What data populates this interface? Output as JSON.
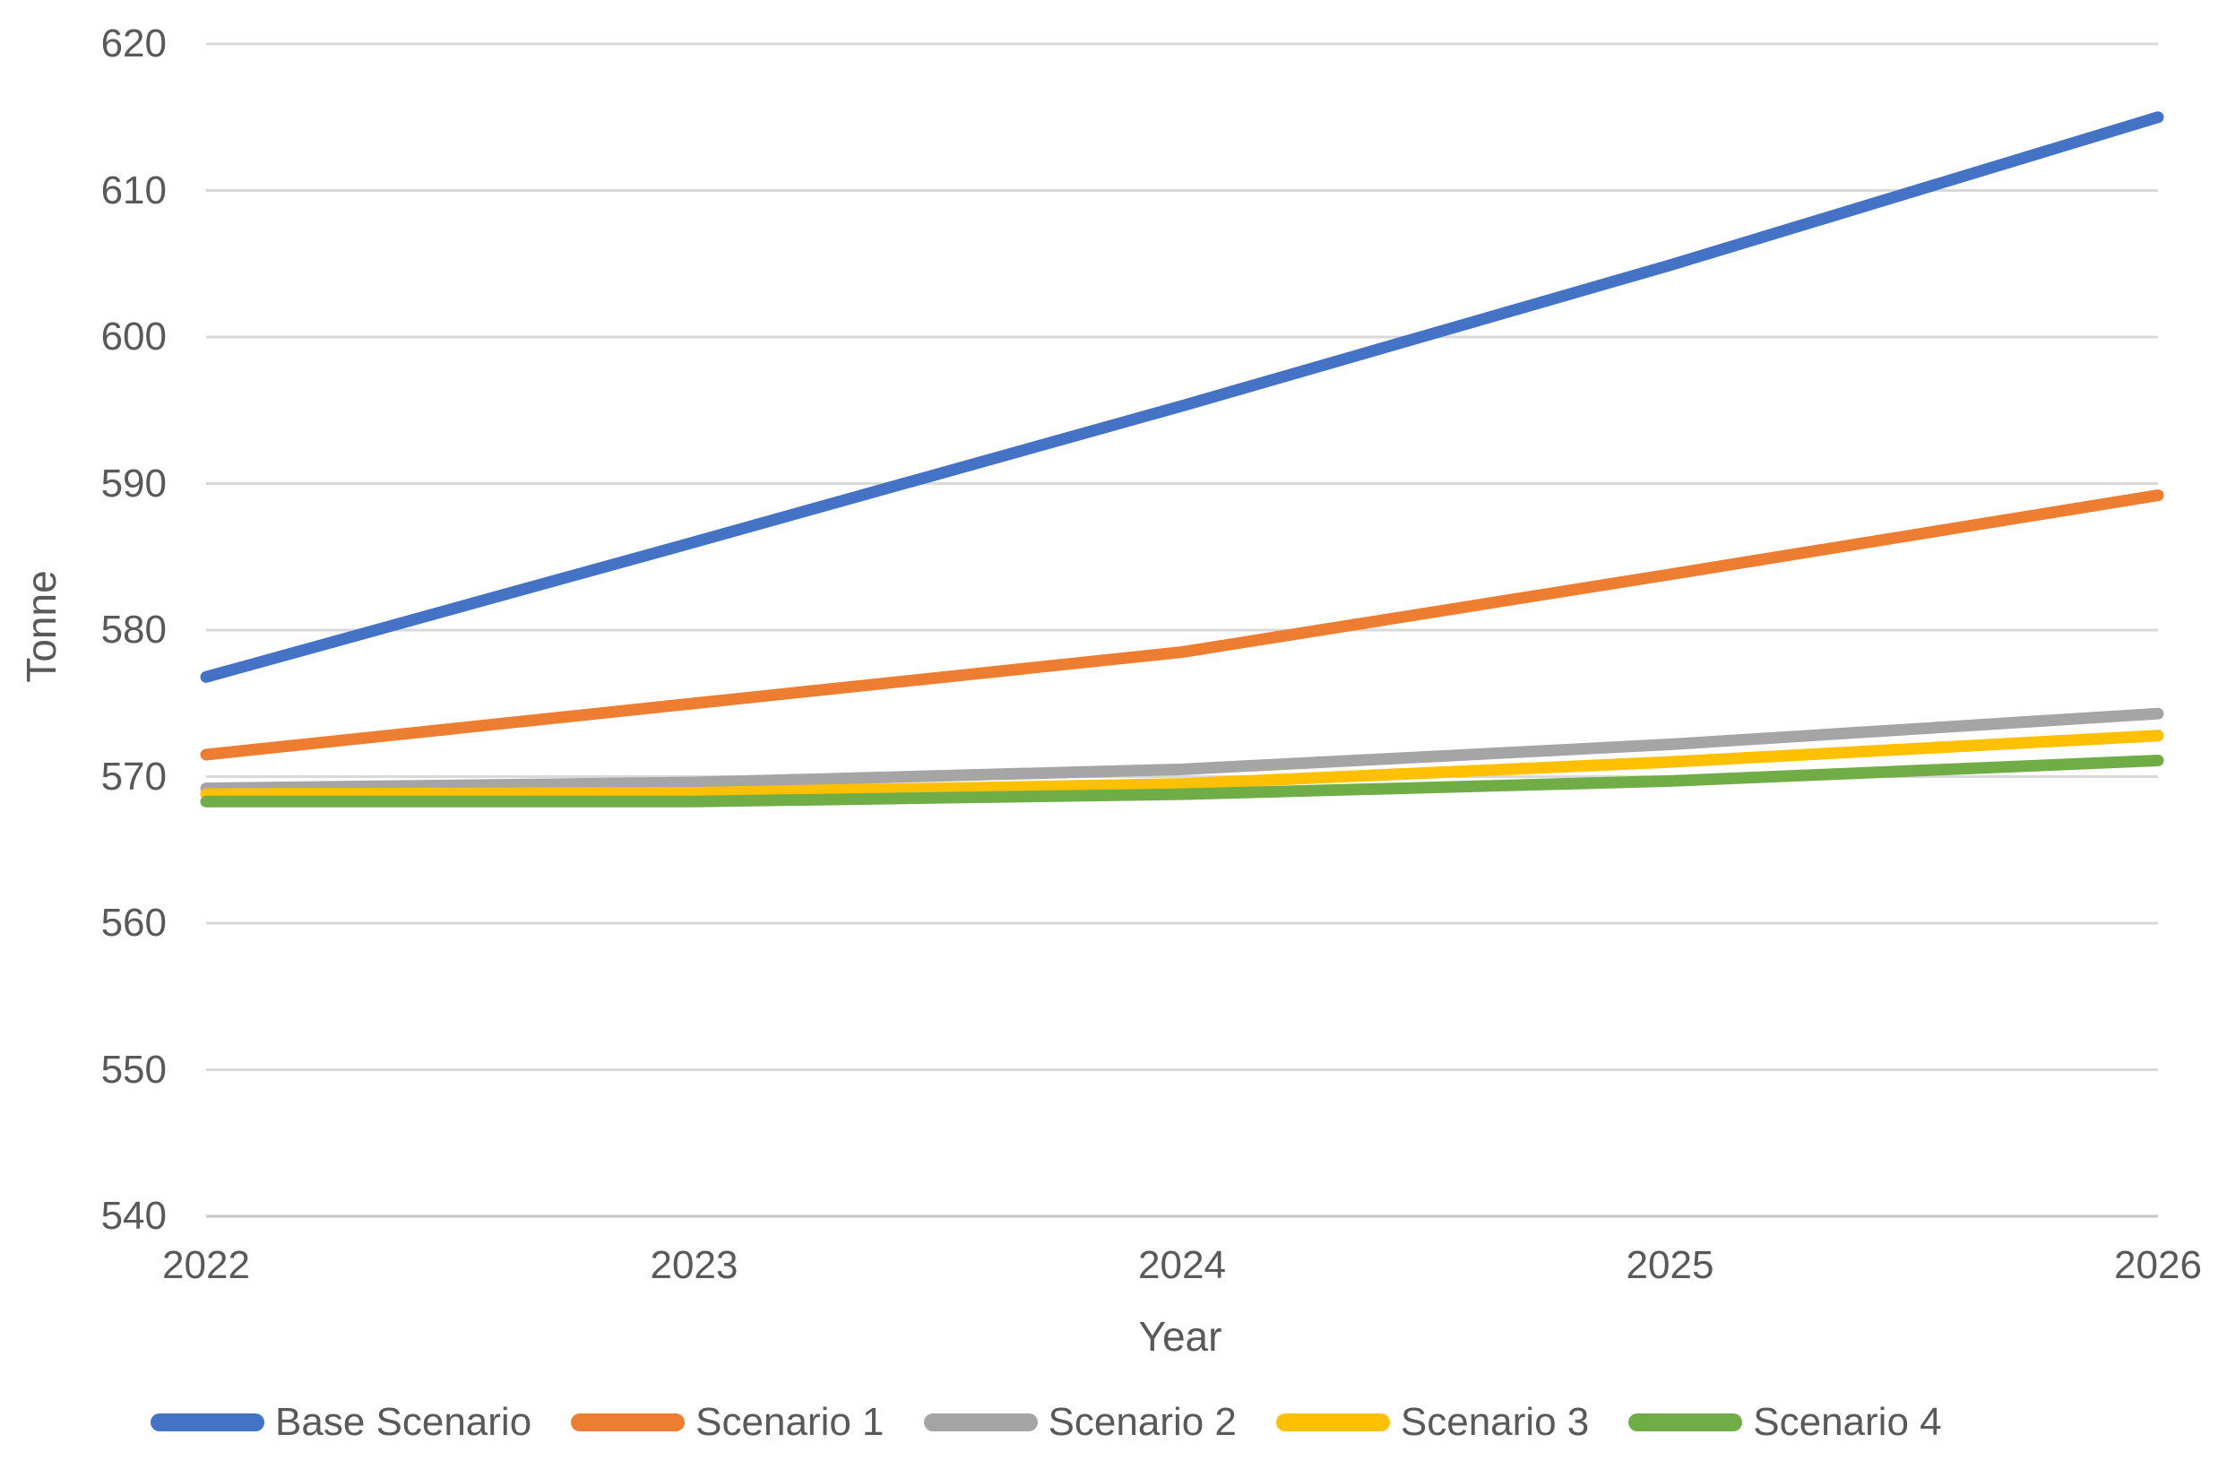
{
  "chart_data": {
    "type": "line",
    "x": [
      "2022",
      "2023",
      "2024",
      "2025",
      "2026"
    ],
    "series": [
      {
        "name": "Base Scenario",
        "color": "#4472C4",
        "values": [
          576.8,
          586.0,
          595.3,
          604.9,
          615.0
        ]
      },
      {
        "name": "Scenario 1",
        "color": "#ED7D31",
        "values": [
          571.5,
          575.0,
          578.5,
          583.8,
          589.2
        ]
      },
      {
        "name": "Scenario 2",
        "color": "#A5A5A5",
        "values": [
          569.2,
          569.6,
          570.5,
          572.2,
          574.3
        ]
      },
      {
        "name": "Scenario 3",
        "color": "#FFC000",
        "values": [
          568.8,
          568.9,
          569.5,
          571.0,
          572.8
        ]
      },
      {
        "name": "Scenario 4",
        "color": "#70AD47",
        "values": [
          568.3,
          568.3,
          568.8,
          569.7,
          571.1
        ]
      }
    ],
    "title": "",
    "xlabel": "Year",
    "ylabel": "Tonne",
    "ylim": [
      540,
      620
    ],
    "ytick_step": 10,
    "yticks": [
      620,
      610,
      600,
      590,
      580,
      570,
      560,
      550,
      540
    ],
    "grid": true,
    "legend_position": "bottom"
  },
  "colors": {
    "gridline": "#D9D9D9",
    "axis_line": "#C6C6C6",
    "text": "#595959",
    "background": "#FFFFFF"
  }
}
